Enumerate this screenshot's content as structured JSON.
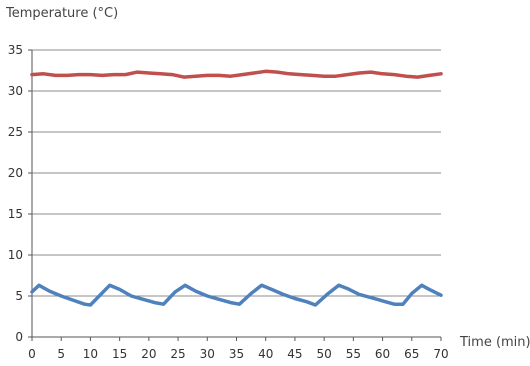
{
  "chart_data": {
    "type": "line",
    "title": "",
    "ylabel": "Temperature (°C)",
    "xlabel": "Time (min)",
    "xlim": [
      0,
      70
    ],
    "ylim": [
      0,
      35
    ],
    "xticks": [
      0,
      5,
      10,
      15,
      20,
      25,
      30,
      35,
      40,
      45,
      50,
      55,
      60,
      65,
      70
    ],
    "yticks": [
      0,
      5,
      10,
      15,
      20,
      25,
      30,
      35
    ],
    "grid": "horizontal",
    "legend": "none",
    "series": [
      {
        "color": "#c0504d",
        "x": [
          0,
          2,
          4,
          6,
          8,
          10,
          12,
          14,
          16,
          18,
          20,
          22,
          24,
          26,
          28,
          30,
          32,
          34,
          36,
          38,
          40,
          42,
          44,
          46,
          48,
          50,
          52,
          54,
          56,
          58,
          60,
          62,
          64,
          66,
          68,
          70
        ],
        "y": [
          32.0,
          32.1,
          31.9,
          31.9,
          32.0,
          32.0,
          31.9,
          32.0,
          32.0,
          32.3,
          32.2,
          32.1,
          32.0,
          31.7,
          31.8,
          31.9,
          31.9,
          31.8,
          32.0,
          32.2,
          32.4,
          32.3,
          32.1,
          32.0,
          31.9,
          31.8,
          31.8,
          32.0,
          32.2,
          32.3,
          32.1,
          32.0,
          31.8,
          31.7,
          31.9,
          32.1
        ]
      },
      {
        "color": "#4f81bd",
        "x": [
          0,
          1.2,
          3,
          5,
          7,
          9,
          10,
          11.5,
          13.3,
          15,
          17,
          19,
          21,
          22.5,
          24.5,
          26.2,
          28,
          30,
          32,
          34,
          35.5,
          37.5,
          39.3,
          41,
          43,
          45,
          47,
          48.5,
          50.5,
          52.5,
          54,
          56,
          58,
          60,
          62,
          63.5,
          65,
          66.7,
          68,
          70
        ],
        "y": [
          5.5,
          6.3,
          5.6,
          5.0,
          4.5,
          4.0,
          3.9,
          5.0,
          6.3,
          5.8,
          5.0,
          4.6,
          4.2,
          4.0,
          5.5,
          6.3,
          5.6,
          5.0,
          4.6,
          4.2,
          4.0,
          5.3,
          6.3,
          5.8,
          5.2,
          4.7,
          4.3,
          3.9,
          5.2,
          6.3,
          5.9,
          5.2,
          4.8,
          4.4,
          4.0,
          4.0,
          5.3,
          6.3,
          5.8,
          5.1
        ]
      }
    ]
  }
}
